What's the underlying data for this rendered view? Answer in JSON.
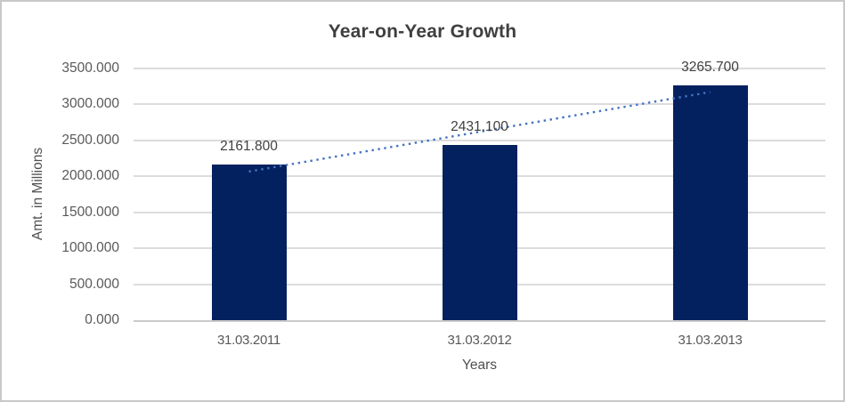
{
  "chart_data": {
    "type": "bar",
    "title": "Year-on-Year Growth",
    "xlabel": "Years",
    "ylabel": "Amt. in Millions",
    "categories": [
      "31.03.2011",
      "31.03.2012",
      "31.03.2013"
    ],
    "values": [
      2161.8,
      2431.1,
      3265.7
    ],
    "data_labels": [
      "2161.800",
      "2431.100",
      "3265.700"
    ],
    "ylim": [
      0,
      3500
    ],
    "ytick_step": 500,
    "ytick_labels": [
      "0.000",
      "500.000",
      "1000.000",
      "1500.000",
      "2000.000",
      "2500.000",
      "3000.000",
      "3500.000"
    ],
    "grid": true,
    "legend": false,
    "trendline": {
      "type": "linear",
      "style": "dotted",
      "color": "#4472c4"
    },
    "colors": {
      "bar": "#02215e",
      "gridline": "#dcdcdc",
      "axis_line": "#cacaca",
      "title_text": "#3f3f3f",
      "axis_text": "#595959",
      "data_label_text": "#404040",
      "border": "#c8c8c8"
    }
  }
}
